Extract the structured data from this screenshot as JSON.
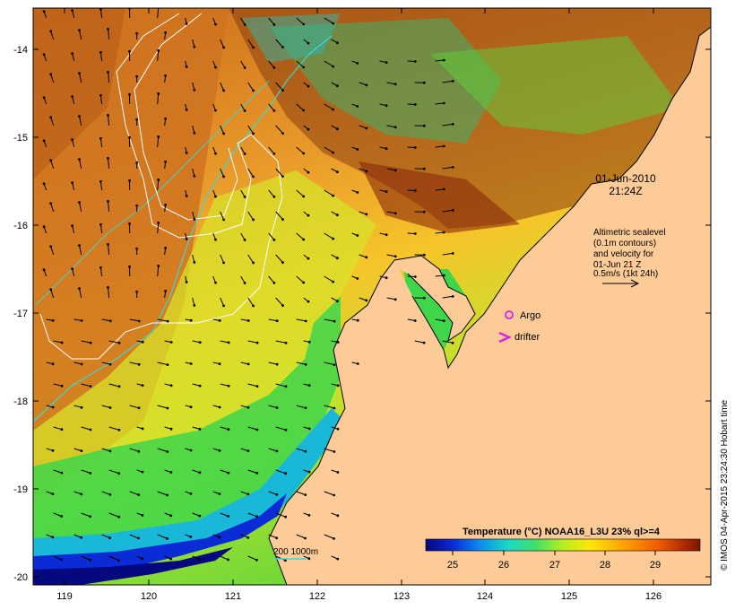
{
  "map": {
    "x_axis": {
      "ticks": [
        "119",
        "120",
        "121",
        "122",
        "123",
        "124",
        "125",
        "126"
      ]
    },
    "y_axis": {
      "ticks": [
        "-14",
        "-15",
        "-16",
        "-17",
        "-18",
        "-19",
        "-20"
      ]
    },
    "timestamp": {
      "date": "01-Jun-2010",
      "time": "21:24Z"
    },
    "altimetry_note": [
      "Altimetric sealevel",
      "(0.1m contours)",
      "and velocity for",
      "01-Jun 21 Z",
      "0.5m/s (1kt 24h)"
    ],
    "legend": {
      "argo": "Argo",
      "drifter": "drifter"
    },
    "bathymetry_label": "200  1000m",
    "colorbar": {
      "title": "Temperature (°C) NOAA16_L3U 23% ql>=4",
      "ticks": [
        "25",
        "26",
        "27",
        "28",
        "29"
      ],
      "colors": [
        "#07077f",
        "#0a2bd6",
        "#0a8ff0",
        "#19d8c8",
        "#3fe06a",
        "#b6ee20",
        "#ffe600",
        "#ffa200",
        "#ef5a00",
        "#b02a00",
        "#7a1500"
      ]
    },
    "credit": "© IMOS 04-Apr-2015 23:24:30 Hobart time",
    "colors": {
      "land": "#fccb98",
      "argo": "#e020e0",
      "drifter": "#e020e0",
      "isobath": "#3fd6d0"
    }
  }
}
